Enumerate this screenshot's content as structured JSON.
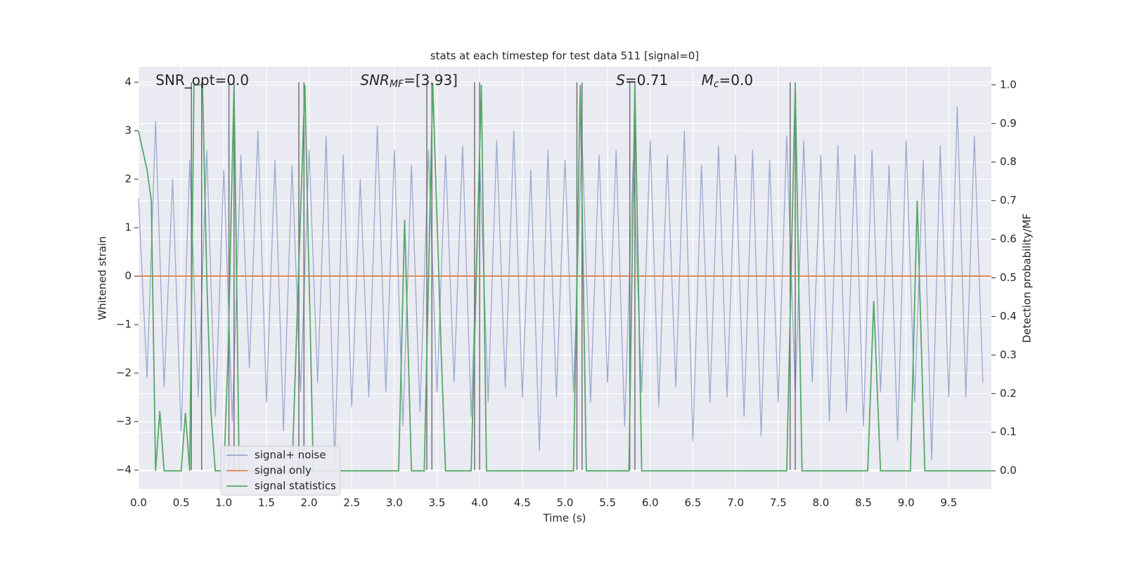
{
  "chart_data": {
    "type": "line",
    "title": "stats at each timestep for test data 511 [signal=0]",
    "xlabel": "Time (s)",
    "ylabel": "Whitened strain",
    "y2label": "Detection probability/MF",
    "annotations": [
      {
        "text": "SNR_opt=0.0",
        "x": 0.2
      },
      {
        "text": "SNR",
        "sub": "MF",
        "rest": "=[3.93]",
        "italic": true,
        "x": 2.6
      },
      {
        "text": "S",
        "rest": "=0.71",
        "italic": true,
        "x": 5.6
      },
      {
        "text": "M",
        "sub": "c",
        "rest": "=0.0",
        "italic": true,
        "x": 6.6
      }
    ],
    "xlim": [
      0,
      10
    ],
    "ylim": [
      -4.39,
      4.32
    ],
    "y2lim": [
      -0.047,
      1.047
    ],
    "xticks": [
      {
        "value": 0,
        "label": "0.0"
      },
      0.5,
      {
        "value": 1,
        "label": "1.0"
      },
      1.5,
      {
        "value": 2,
        "label": "2.0"
      },
      2.5,
      {
        "value": 3,
        "label": "3.0"
      },
      3.5,
      {
        "value": 4,
        "label": "4.0"
      },
      4.5,
      {
        "value": 5,
        "label": "5.0"
      },
      5.5,
      {
        "value": 6,
        "label": "6.0"
      },
      6.5,
      {
        "value": 7,
        "label": "7.0"
      },
      7.5,
      {
        "value": 8,
        "label": "8.0"
      },
      8.5,
      {
        "value": 9,
        "label": "9.0"
      },
      9.5
    ],
    "yticks": [
      {
        "value": -4,
        "label": "−4"
      },
      {
        "value": -3,
        "label": "−3"
      },
      {
        "value": -2,
        "label": "−2"
      },
      {
        "value": -1,
        "label": "−1"
      },
      0,
      1,
      2,
      3,
      4
    ],
    "y2ticks": [
      {
        "value": 0,
        "label": "0.0"
      },
      0.1,
      0.2,
      0.3,
      0.4,
      0.5,
      0.6,
      0.7,
      0.8,
      0.9,
      {
        "value": 1,
        "label": "1.0"
      }
    ],
    "grid": true,
    "legend": "lower left",
    "vlines": {
      "color": "#555555",
      "ymin": -4,
      "ymax": 4,
      "x": [
        0.62,
        0.74,
        1.06,
        1.12,
        1.88,
        1.94,
        3.38,
        3.44,
        3.94,
        4.0,
        5.14,
        5.2,
        5.76,
        5.82,
        7.64,
        7.7
      ]
    },
    "series": [
      {
        "name": "signal+ noise",
        "color": "#99a9cf",
        "x": [
          0,
          0.1,
          0.2,
          0.3,
          0.4,
          0.5,
          0.6,
          0.7,
          0.8,
          0.9,
          1,
          1.1,
          1.2,
          1.3,
          1.4,
          1.5,
          1.6,
          1.7,
          1.8,
          1.9,
          2,
          2.1,
          2.2,
          2.3,
          2.4,
          2.5,
          2.6,
          2.7,
          2.8,
          2.9,
          3,
          3.1,
          3.2,
          3.3,
          3.4,
          3.5,
          3.6,
          3.7,
          3.8,
          3.9,
          4,
          4.1,
          4.2,
          4.3,
          4.4,
          4.5,
          4.6,
          4.7,
          4.8,
          4.9,
          5,
          5.1,
          5.2,
          5.3,
          5.4,
          5.5,
          5.6,
          5.7,
          5.8,
          5.9,
          6,
          6.1,
          6.2,
          6.3,
          6.4,
          6.5,
          6.6,
          6.7,
          6.8,
          6.9,
          7,
          7.1,
          7.2,
          7.3,
          7.4,
          7.5,
          7.6,
          7.7,
          7.8,
          7.9,
          8,
          8.1,
          8.2,
          8.3,
          8.4,
          8.5,
          8.6,
          8.7,
          8.8,
          8.9,
          9,
          9.1,
          9.2,
          9.3,
          9.4,
          9.5,
          9.6,
          9.7,
          9.8,
          9.9
        ],
        "values": [
          1.6,
          -2.1,
          3.2,
          -2.3,
          2.0,
          -3.2,
          2.4,
          -2.5,
          2.6,
          -2.9,
          2.2,
          -3.0,
          2.5,
          -1.9,
          3.0,
          -2.6,
          2.4,
          -3.2,
          2.3,
          -2.4,
          2.6,
          -2.2,
          2.9,
          -3.9,
          2.5,
          -2.7,
          2.0,
          -2.5,
          3.1,
          -2.4,
          2.6,
          -3.1,
          2.3,
          -2.8,
          2.6,
          -2.4,
          2.5,
          -2.2,
          2.7,
          -2.9,
          2.4,
          -2.6,
          2.8,
          -2.3,
          3.0,
          -2.5,
          2.2,
          -3.6,
          2.6,
          -2.5,
          2.4,
          -2.4,
          2.9,
          -2.6,
          2.5,
          -2.2,
          2.6,
          -3.1,
          2.4,
          -2.4,
          2.8,
          -2.7,
          2.5,
          -2.3,
          3.0,
          -3.4,
          2.3,
          -2.6,
          2.7,
          -2.5,
          2.5,
          -2.9,
          2.6,
          -3.3,
          2.4,
          -2.6,
          2.9,
          -2.4,
          2.8,
          -2.2,
          2.5,
          -3.0,
          2.7,
          -2.8,
          2.5,
          -3.1,
          2.6,
          -2.4,
          2.3,
          -3.4,
          2.8,
          -2.6,
          2.4,
          -3.8,
          2.7,
          -2.5,
          3.5,
          -2.5,
          2.9,
          -2.2
        ]
      },
      {
        "name": "signal only",
        "color": "#dd8452",
        "x": [
          0,
          10
        ],
        "values": [
          0,
          0
        ]
      },
      {
        "name": "signal statistics",
        "color": "#55a868",
        "axis": "y2",
        "x": [
          0,
          0.1,
          0.15,
          0.2,
          0.25,
          0.3,
          0.5,
          0.55,
          0.6,
          0.65,
          0.75,
          0.8,
          0.85,
          0.9,
          1.0,
          1.05,
          1.12,
          1.18,
          1.8,
          1.95,
          2.05,
          3.05,
          3.12,
          3.2,
          3.35,
          3.45,
          3.55,
          3.6,
          3.9,
          4.02,
          4.08,
          5.1,
          5.18,
          5.25,
          5.75,
          5.82,
          5.9,
          7.6,
          7.7,
          7.78,
          8.55,
          8.62,
          8.7,
          9.05,
          9.13,
          9.22,
          10
        ],
        "values": [
          0.88,
          0.78,
          0.7,
          0,
          0.155,
          0,
          0,
          0.15,
          0,
          1,
          1,
          0.5,
          0.15,
          0,
          0,
          0.3,
          1,
          0,
          0,
          1,
          0,
          0,
          0.65,
          0,
          0,
          1,
          0.3,
          0,
          0,
          1,
          0,
          0,
          1,
          0,
          0,
          1,
          0,
          0,
          1,
          0,
          0,
          0.44,
          0,
          0,
          0.7,
          0,
          0
        ]
      }
    ]
  }
}
